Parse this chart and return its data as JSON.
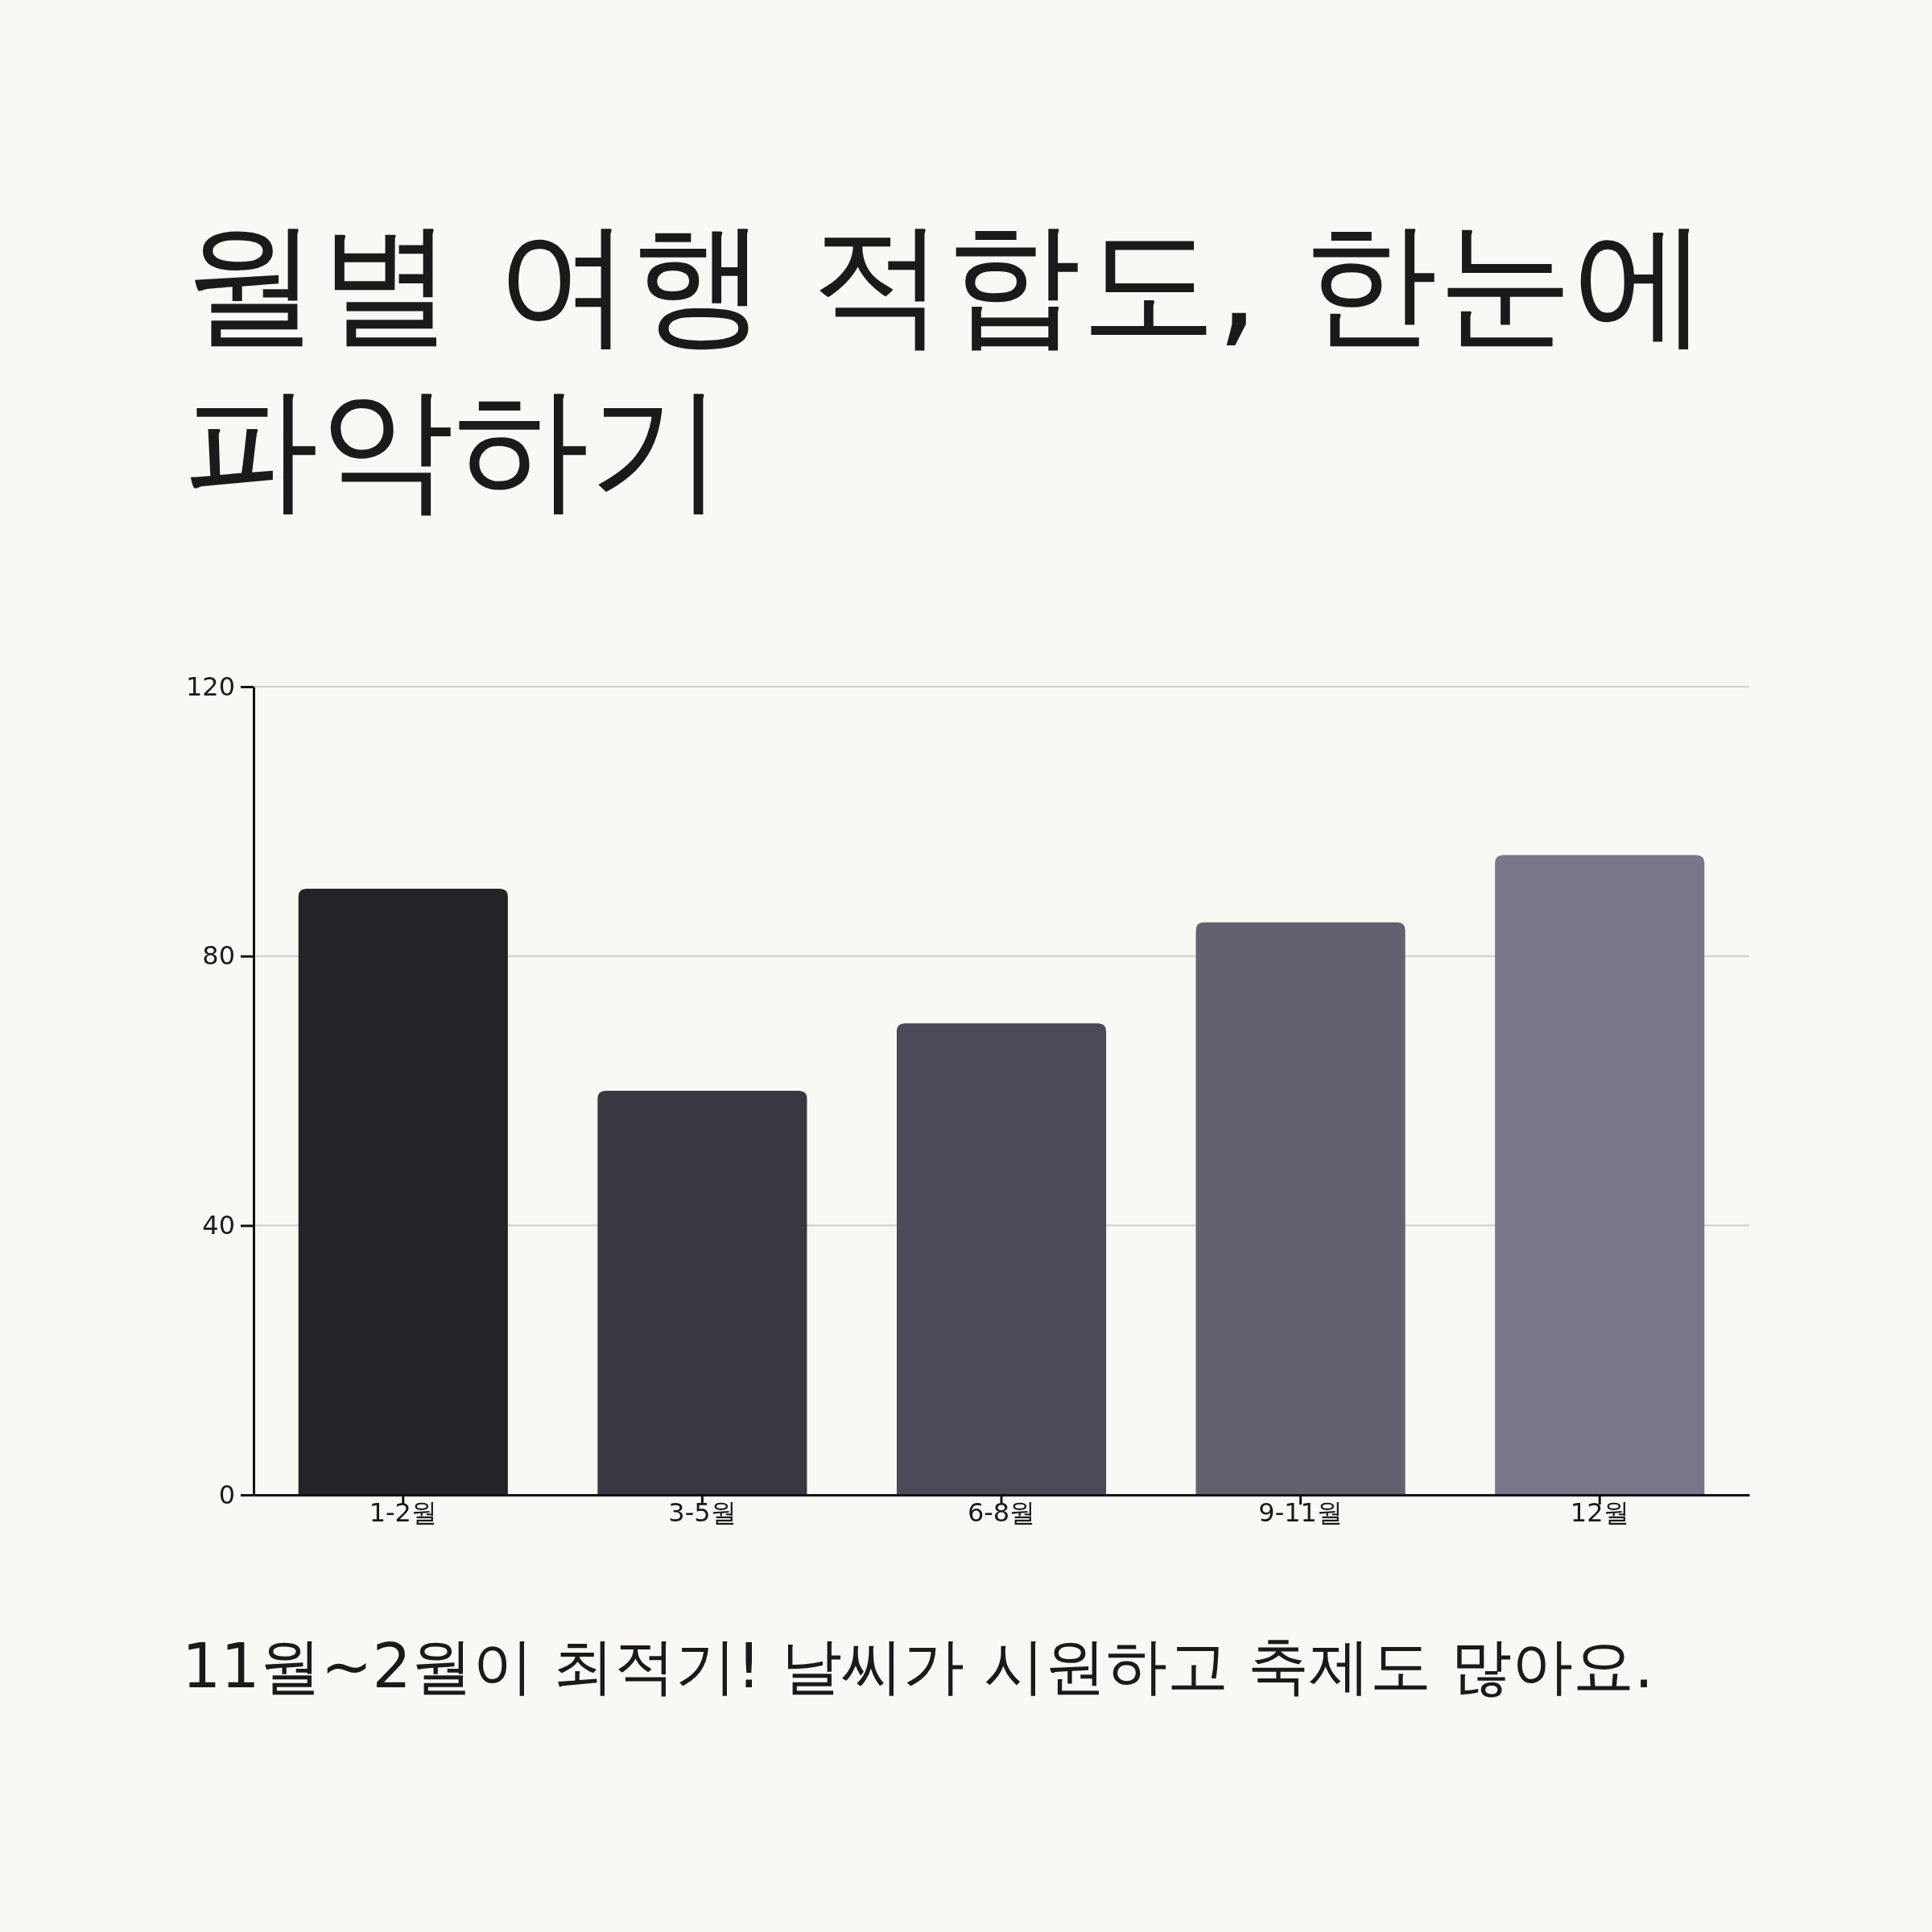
{
  "chart_data": {
    "type": "bar",
    "title": "월별 여행 적합도, 한눈에 파악하기",
    "categories": [
      "1-2월",
      "3-5월",
      "6-8월",
      "9-11월",
      "12월"
    ],
    "values": [
      90,
      60,
      70,
      85,
      95
    ],
    "colors": [
      "#232328",
      "#383842",
      "#4b4a58",
      "#62616f",
      "#787689"
    ],
    "ylim": [
      0,
      120
    ],
    "yticks": [
      0,
      40,
      80,
      120
    ],
    "grid": "y",
    "annotations": [
      "11월~2월이 최적기! 날씨가 시원하고 축제도 많아요."
    ]
  }
}
